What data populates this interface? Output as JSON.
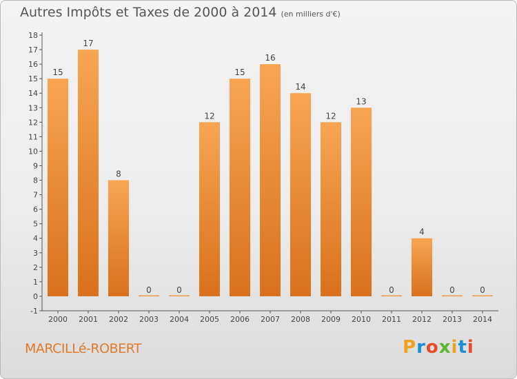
{
  "header": {
    "title": "Autres Impôts et Taxes de 2000 à 2014",
    "subtitle": "(en milliers d'€)"
  },
  "footer": {
    "commune": "MARCILLé-ROBERT",
    "logo_letters": [
      "P",
      "r",
      "o",
      "x",
      "i",
      "t",
      "i"
    ],
    "logo_colors": [
      "#f0a11e",
      "#1a8fd6",
      "#e84a2a",
      "#5bb531",
      "#f0a11e",
      "#1a8fd6",
      "#e84a2a"
    ]
  },
  "chart_data": {
    "type": "bar",
    "categories": [
      "2000",
      "2001",
      "2002",
      "2003",
      "2004",
      "2005",
      "2006",
      "2007",
      "2008",
      "2009",
      "2010",
      "2011",
      "2012",
      "2013",
      "2014"
    ],
    "values": [
      15,
      17,
      8,
      0,
      0,
      12,
      15,
      16,
      14,
      12,
      13,
      0,
      4,
      0,
      0
    ],
    "ylim": [
      -1,
      18
    ],
    "yticks": [
      "-1",
      "0",
      "1",
      "2",
      "3",
      "4",
      "5",
      "6",
      "7",
      "8",
      "9",
      "10",
      "11",
      "12",
      "13",
      "14",
      "15",
      "16",
      "17",
      "18"
    ],
    "bar_color": "#f08a28",
    "grid": false
  }
}
